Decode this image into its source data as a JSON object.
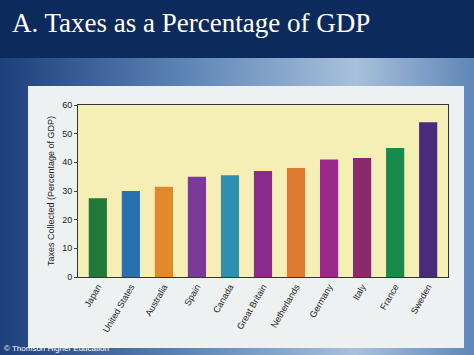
{
  "chart_data": {
    "type": "bar",
    "title": "A. Taxes as a Percentage of GDP",
    "y_label": "Taxes Collected (Percentage of GDP)",
    "annotations": [
      "© Thomson Higher Education"
    ],
    "categories": [
      "Japan",
      "United States",
      "Australia",
      "Spain",
      "Canada",
      "Great Britain",
      "Netherlands",
      "Germany",
      "Italy",
      "France",
      "Sweden"
    ],
    "values": [
      27.5,
      30,
      31.5,
      35,
      35.5,
      37,
      38,
      41,
      41.5,
      45,
      54
    ],
    "colors": [
      "#1f7a3a",
      "#2a6fb0",
      "#e08a2a",
      "#7a3a9a",
      "#2f8fb0",
      "#8a2a8a",
      "#e07a30",
      "#9a2a8a",
      "#8a2a6a",
      "#1a8a4a",
      "#4a2a7a"
    ],
    "ylim": [
      0,
      60
    ],
    "yticks": [
      0,
      10,
      20,
      30,
      40,
      50,
      60
    ],
    "grid": false
  }
}
